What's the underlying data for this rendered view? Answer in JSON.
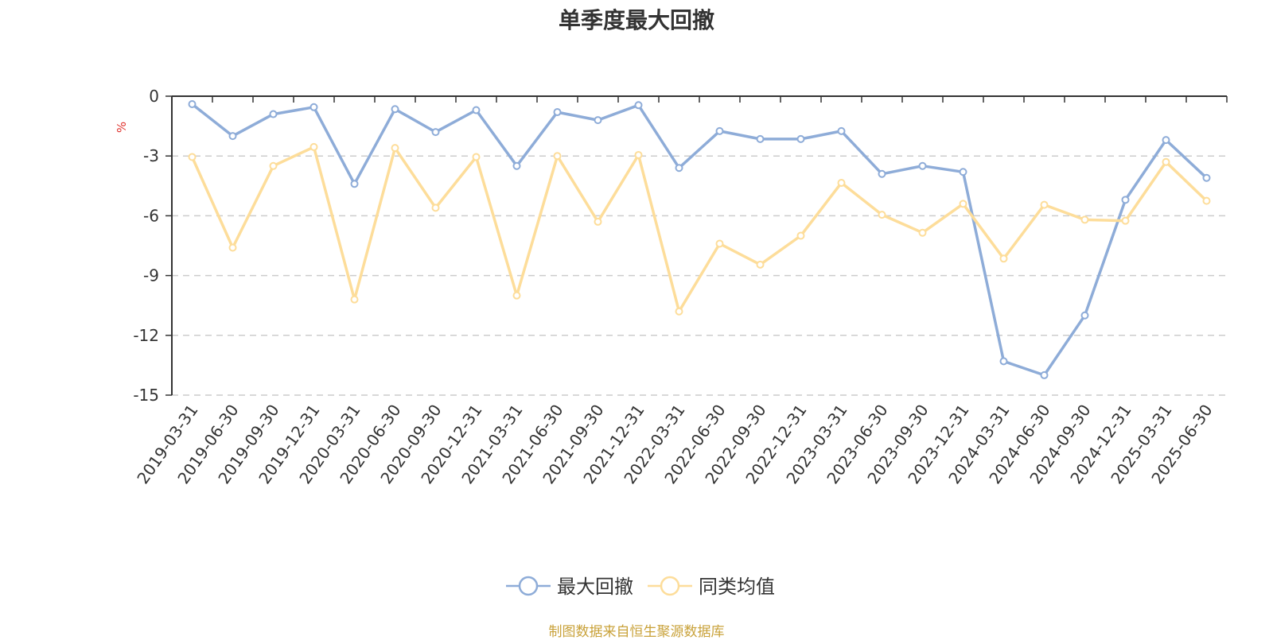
{
  "chart_data": {
    "type": "line",
    "title": "单季度最大回撤",
    "ylabel": "%",
    "xlabel": "",
    "ylim": [
      -15,
      0
    ],
    "yticks": [
      0,
      -3,
      -6,
      -9,
      -12,
      -15
    ],
    "grid": true,
    "legend_position": "bottom-center",
    "categories": [
      "2019-03-31",
      "2019-06-30",
      "2019-09-30",
      "2019-12-31",
      "2020-03-31",
      "2020-06-30",
      "2020-09-30",
      "2020-12-31",
      "2021-03-31",
      "2021-06-30",
      "2021-09-30",
      "2021-12-31",
      "2022-03-31",
      "2022-06-30",
      "2022-09-30",
      "2022-12-31",
      "2023-03-31",
      "2023-06-30",
      "2023-09-30",
      "2023-12-31",
      "2024-03-31",
      "2024-06-30",
      "2024-09-30",
      "2024-12-31",
      "2025-03-31",
      "2025-06-30"
    ],
    "series": [
      {
        "name": "最大回撤",
        "color": "#8eacd8",
        "values": [
          -0.4,
          -2.0,
          -0.9,
          -0.55,
          -4.4,
          -0.65,
          -1.8,
          -0.7,
          -3.5,
          -0.8,
          -1.2,
          -0.45,
          -3.6,
          -1.75,
          -2.15,
          -2.15,
          -1.75,
          -3.9,
          -3.5,
          -3.8,
          -13.3,
          -14.0,
          -11.0,
          -5.2,
          -2.2,
          -4.1
        ]
      },
      {
        "name": "同类均值",
        "color": "#fddd9a",
        "values": [
          -3.05,
          -7.6,
          -3.5,
          -2.55,
          -10.2,
          -2.6,
          -5.6,
          -3.05,
          -10.0,
          -3.0,
          -6.3,
          -2.95,
          -10.8,
          -7.4,
          -8.45,
          -7.0,
          -4.35,
          -5.95,
          -6.85,
          -5.4,
          -8.15,
          -5.45,
          -6.2,
          -6.25,
          -3.3,
          -5.25
        ]
      }
    ]
  },
  "footer": {
    "source": "制图数据来自恒生聚源数据库"
  }
}
